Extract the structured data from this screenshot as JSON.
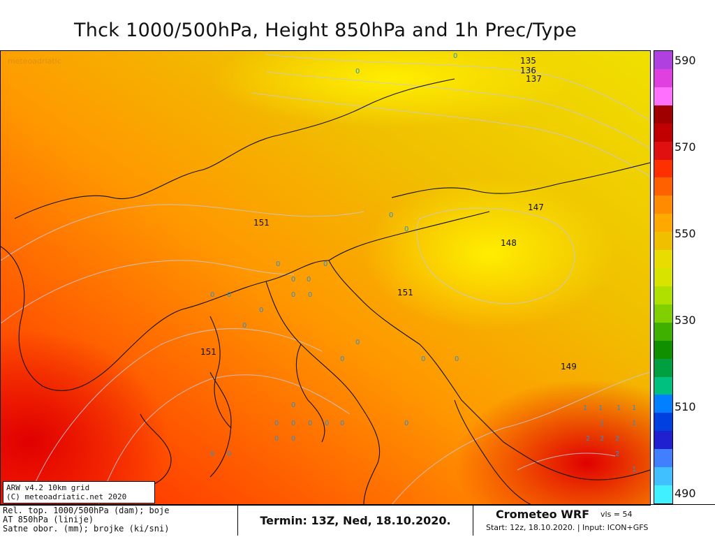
{
  "title": "Thck 1000/500hPa, Height 850hPa and 1h Prec/Type",
  "color_scale": {
    "labels": [
      "590",
      "570",
      "550",
      "530",
      "510",
      "490"
    ],
    "colors": [
      "#b040e0",
      "#e040e0",
      "#ff70ff",
      "#a00000",
      "#c00000",
      "#e01010",
      "#ff3000",
      "#ff6000",
      "#ff8c00",
      "#ffa800",
      "#f0c000",
      "#e8dc00",
      "#d8e400",
      "#b0e000",
      "#80d000",
      "#40b000",
      "#109000",
      "#00a040",
      "#00c080",
      "#0080ff",
      "#0040e0",
      "#2020d0",
      "#4080ff",
      "#40c0ff",
      "#40f0ff"
    ]
  },
  "contour_labels": [
    "135",
    "136",
    "137",
    "147",
    "148",
    "151",
    "151",
    "151",
    "149"
  ],
  "watermark": "meteoadriatic",
  "info_box": {
    "line1": "ARW v4.2 10km grid",
    "line2": "(C) meteoadriatic.net 2020"
  },
  "legend": {
    "line1": "Rel. top. 1000/500hPa (dam); boje",
    "line2": "AT 850hPa (linije)",
    "line3": "Satne obor. (mm); brojke (ki/sni)"
  },
  "termin": "Termin: 13Z, Ned, 18.10.2020.",
  "model": {
    "name": "Crometeo WRF",
    "vls": "vls = 54",
    "start": "Start: 12z, 18.10.2020. | Input: ICON+GFS"
  },
  "precip_values": [
    "0",
    "0",
    "0",
    "0",
    "0",
    "0",
    "0",
    "0",
    "0",
    "0",
    "0",
    "0",
    "0",
    "0",
    "0",
    "0",
    "0",
    "0",
    "0",
    "0",
    "0",
    "0",
    "0",
    "0",
    "0",
    "0",
    "0",
    "0",
    "1",
    "1",
    "1",
    "1",
    "1",
    "2",
    "2",
    "2",
    "2",
    "1",
    "1",
    "0"
  ]
}
